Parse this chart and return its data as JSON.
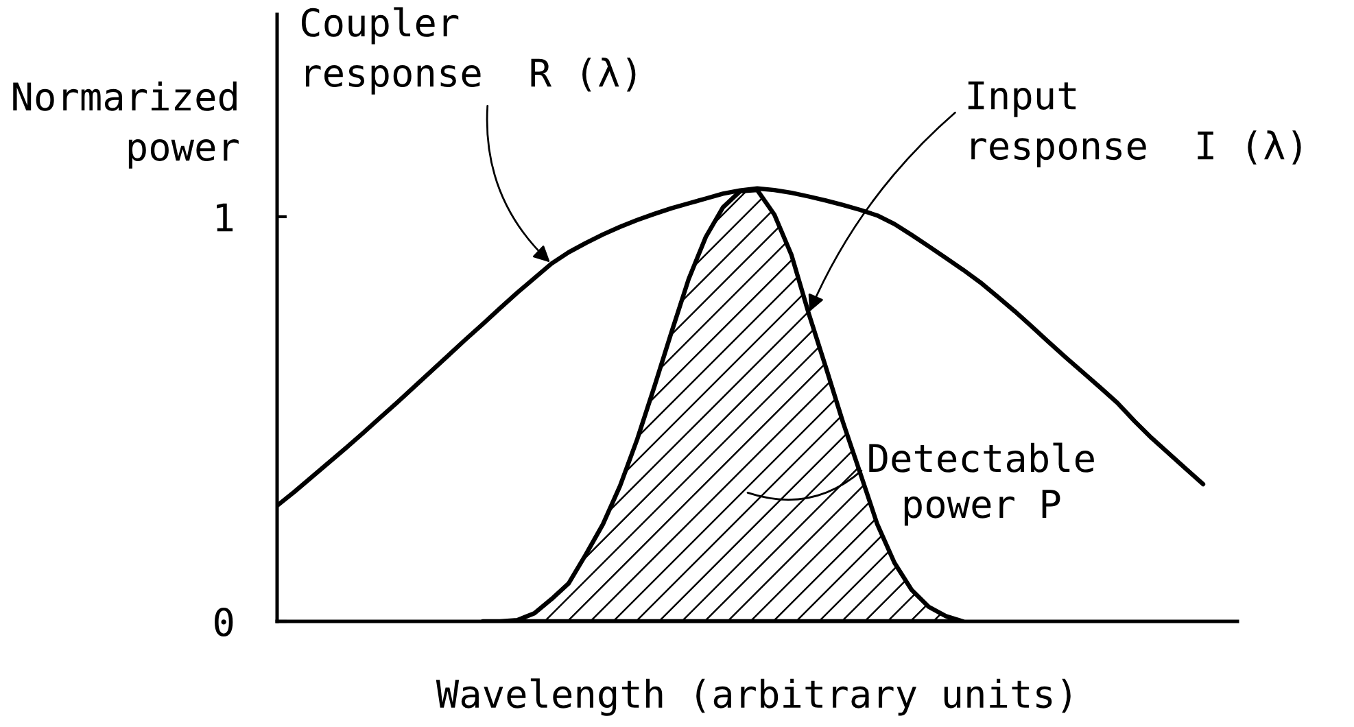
{
  "chart_data": {
    "type": "line",
    "xlabel": "Wavelength (arbitrary units)",
    "ylabel": "Normarized\npower",
    "categories": [
      null,
      null,
      null,
      null,
      null,
      null,
      null,
      null,
      null,
      null,
      null,
      null,
      null,
      null,
      null,
      null,
      null,
      null,
      null,
      null,
      null,
      null,
      null,
      null,
      null,
      null,
      null,
      null,
      null,
      null,
      null,
      null,
      null,
      null,
      null,
      null,
      null,
      null,
      null,
      null,
      null,
      null,
      null,
      null,
      null,
      null,
      null,
      null,
      null,
      null,
      null,
      null,
      null,
      null,
      null,
      null,
      null
    ],
    "ylim": [
      0,
      1.5
    ],
    "yticks": [
      0,
      1
    ],
    "tick_labels": "y",
    "annotations": [
      "Detectable\npower P"
    ],
    "series": [
      {
        "name": "Coupler\nresponse  R (λ)",
        "color": "#000000",
        "values": [
          0.286,
          0.32,
          0.356,
          0.392,
          0.428,
          0.465,
          0.503,
          0.541,
          0.58,
          0.619,
          0.658,
          0.697,
          0.735,
          0.774,
          0.812,
          0.848,
          0.884,
          0.912,
          0.935,
          0.956,
          0.975,
          0.992,
          1.007,
          1.021,
          1.033,
          1.045,
          1.057,
          1.065,
          1.07,
          1.066,
          1.059,
          1.05,
          1.04,
          1.029,
          1.017,
          1.003,
          0.982,
          0.955,
          0.927,
          0.898,
          0.869,
          0.838,
          0.803,
          0.767,
          0.729,
          0.69,
          0.652,
          0.615,
          0.578,
          0.54,
          0.495,
          0.453,
          0.415,
          0.377,
          0.339,
          null,
          null
        ]
      },
      {
        "name": "Input\nresponse  I (λ)",
        "type": "area",
        "color": "#000000",
        "values": [
          null,
          null,
          null,
          null,
          null,
          null,
          null,
          null,
          null,
          null,
          null,
          null,
          0,
          0,
          0.003,
          0.02,
          0.055,
          0.094,
          0.165,
          0.24,
          0.335,
          0.45,
          0.58,
          0.715,
          0.846,
          0.95,
          1.023,
          1.063,
          1.066,
          1.005,
          0.905,
          0.761,
          0.628,
          0.492,
          0.367,
          0.24,
          0.145,
          0.078,
          0.036,
          0.013,
          0,
          null,
          null,
          null,
          null,
          null,
          null,
          null,
          null,
          null,
          null,
          null,
          null,
          null,
          null,
          null,
          null
        ]
      }
    ]
  }
}
